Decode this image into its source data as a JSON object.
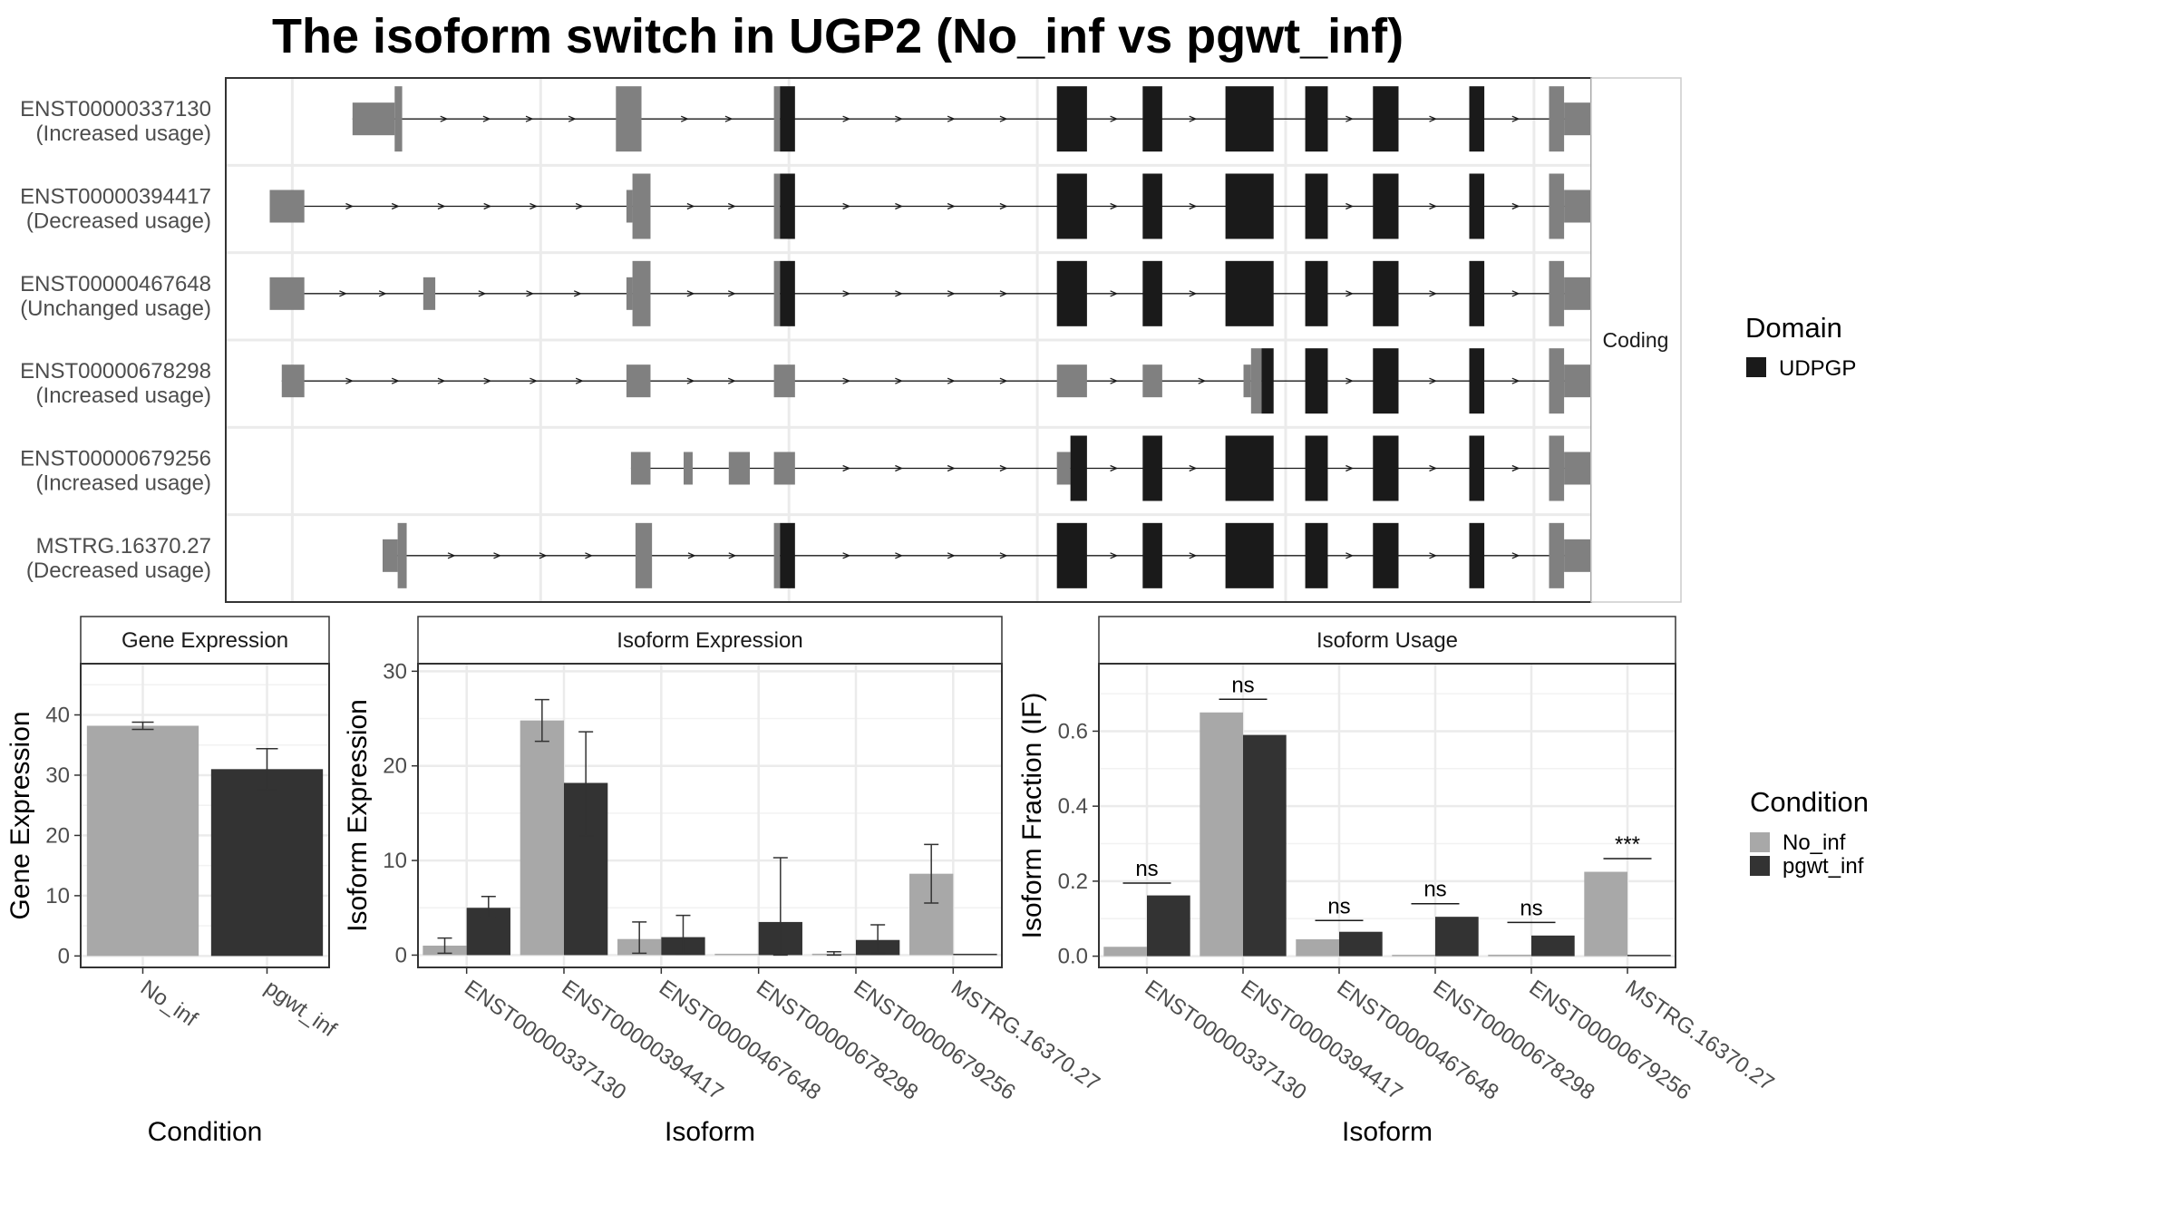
{
  "title": "The isoform switch in UGP2 (No_inf vs pgwt_inf)",
  "colors": {
    "no_inf": "#a8a8a8",
    "pgwt_inf": "#333333",
    "utr": "#808080",
    "domain": "#1a1a1a",
    "panel_border": "#333333",
    "grid": "#ebebeb"
  },
  "structure": {
    "strip_label": "Coding",
    "legend_title": "Domain",
    "legend_items": [
      "UDPGP"
    ],
    "transcripts": [
      {
        "id": "ENST00000337130",
        "usage": "(Increased usage)",
        "start": 80,
        "end": 930,
        "exons": [
          {
            "s": 80,
            "e": 108,
            "k": "utr",
            "h": "short"
          },
          {
            "s": 108,
            "e": 113,
            "k": "utr",
            "h": "tall"
          },
          {
            "s": 255,
            "e": 272,
            "k": "utr",
            "h": "tall"
          },
          {
            "s": 360,
            "e": 364,
            "k": "utr",
            "h": "tall"
          },
          {
            "s": 364,
            "e": 374,
            "k": "dom",
            "h": "tall"
          },
          {
            "s": 548,
            "e": 568,
            "k": "dom",
            "h": "tall"
          },
          {
            "s": 605,
            "e": 618,
            "k": "dom",
            "h": "tall"
          },
          {
            "s": 660,
            "e": 692,
            "k": "dom",
            "h": "tall"
          },
          {
            "s": 713,
            "e": 728,
            "k": "dom",
            "h": "tall"
          },
          {
            "s": 758,
            "e": 775,
            "k": "dom",
            "h": "tall"
          },
          {
            "s": 822,
            "e": 832,
            "k": "dom",
            "h": "tall"
          },
          {
            "s": 875,
            "e": 885,
            "k": "utr",
            "h": "tall"
          },
          {
            "s": 885,
            "e": 905,
            "k": "utr",
            "h": "short"
          }
        ]
      },
      {
        "id": "ENST00000394417",
        "usage": "(Decreased usage)",
        "start": 25,
        "end": 930,
        "exons": [
          {
            "s": 25,
            "e": 48,
            "k": "utr",
            "h": "short"
          },
          {
            "s": 262,
            "e": 266,
            "k": "utr",
            "h": "short"
          },
          {
            "s": 266,
            "e": 278,
            "k": "utr",
            "h": "tall"
          },
          {
            "s": 360,
            "e": 364,
            "k": "utr",
            "h": "tall"
          },
          {
            "s": 364,
            "e": 374,
            "k": "dom",
            "h": "tall"
          },
          {
            "s": 548,
            "e": 568,
            "k": "dom",
            "h": "tall"
          },
          {
            "s": 605,
            "e": 618,
            "k": "dom",
            "h": "tall"
          },
          {
            "s": 660,
            "e": 692,
            "k": "dom",
            "h": "tall"
          },
          {
            "s": 713,
            "e": 728,
            "k": "dom",
            "h": "tall"
          },
          {
            "s": 758,
            "e": 775,
            "k": "dom",
            "h": "tall"
          },
          {
            "s": 822,
            "e": 832,
            "k": "dom",
            "h": "tall"
          },
          {
            "s": 875,
            "e": 885,
            "k": "utr",
            "h": "tall"
          },
          {
            "s": 885,
            "e": 905,
            "k": "utr",
            "h": "short"
          }
        ]
      },
      {
        "id": "ENST00000467648",
        "usage": "(Unchanged usage)",
        "start": 25,
        "end": 930,
        "exons": [
          {
            "s": 25,
            "e": 48,
            "k": "utr",
            "h": "short"
          },
          {
            "s": 127,
            "e": 135,
            "k": "utr",
            "h": "short"
          },
          {
            "s": 262,
            "e": 266,
            "k": "utr",
            "h": "short"
          },
          {
            "s": 266,
            "e": 278,
            "k": "utr",
            "h": "tall"
          },
          {
            "s": 360,
            "e": 364,
            "k": "utr",
            "h": "tall"
          },
          {
            "s": 364,
            "e": 374,
            "k": "dom",
            "h": "tall"
          },
          {
            "s": 548,
            "e": 568,
            "k": "dom",
            "h": "tall"
          },
          {
            "s": 605,
            "e": 618,
            "k": "dom",
            "h": "tall"
          },
          {
            "s": 660,
            "e": 692,
            "k": "dom",
            "h": "tall"
          },
          {
            "s": 713,
            "e": 728,
            "k": "dom",
            "h": "tall"
          },
          {
            "s": 758,
            "e": 775,
            "k": "dom",
            "h": "tall"
          },
          {
            "s": 822,
            "e": 832,
            "k": "dom",
            "h": "tall"
          },
          {
            "s": 875,
            "e": 885,
            "k": "utr",
            "h": "tall"
          },
          {
            "s": 885,
            "e": 905,
            "k": "utr",
            "h": "short"
          }
        ]
      },
      {
        "id": "ENST00000678298",
        "usage": "(Increased usage)",
        "start": 33,
        "end": 930,
        "exons": [
          {
            "s": 33,
            "e": 48,
            "k": "utr",
            "h": "short"
          },
          {
            "s": 262,
            "e": 278,
            "k": "utr",
            "h": "short"
          },
          {
            "s": 360,
            "e": 374,
            "k": "utr",
            "h": "short"
          },
          {
            "s": 548,
            "e": 568,
            "k": "utr",
            "h": "short"
          },
          {
            "s": 605,
            "e": 618,
            "k": "utr",
            "h": "short"
          },
          {
            "s": 672,
            "e": 677,
            "k": "utr",
            "h": "short"
          },
          {
            "s": 677,
            "e": 684,
            "k": "utr",
            "h": "tall"
          },
          {
            "s": 684,
            "e": 692,
            "k": "dom",
            "h": "tall"
          },
          {
            "s": 713,
            "e": 728,
            "k": "dom",
            "h": "tall"
          },
          {
            "s": 758,
            "e": 775,
            "k": "dom",
            "h": "tall"
          },
          {
            "s": 822,
            "e": 832,
            "k": "dom",
            "h": "tall"
          },
          {
            "s": 875,
            "e": 885,
            "k": "utr",
            "h": "tall"
          },
          {
            "s": 885,
            "e": 905,
            "k": "utr",
            "h": "short"
          }
        ]
      },
      {
        "id": "ENST00000679256",
        "usage": "(Increased usage)",
        "start": 265,
        "end": 930,
        "exons": [
          {
            "s": 265,
            "e": 278,
            "k": "utr",
            "h": "short"
          },
          {
            "s": 300,
            "e": 306,
            "k": "utr",
            "h": "short"
          },
          {
            "s": 330,
            "e": 344,
            "k": "utr",
            "h": "short"
          },
          {
            "s": 360,
            "e": 374,
            "k": "utr",
            "h": "short"
          },
          {
            "s": 548,
            "e": 557,
            "k": "utr",
            "h": "short"
          },
          {
            "s": 557,
            "e": 568,
            "k": "dom",
            "h": "tall"
          },
          {
            "s": 605,
            "e": 618,
            "k": "dom",
            "h": "tall"
          },
          {
            "s": 660,
            "e": 692,
            "k": "dom",
            "h": "tall"
          },
          {
            "s": 713,
            "e": 728,
            "k": "dom",
            "h": "tall"
          },
          {
            "s": 758,
            "e": 775,
            "k": "dom",
            "h": "tall"
          },
          {
            "s": 822,
            "e": 832,
            "k": "dom",
            "h": "tall"
          },
          {
            "s": 875,
            "e": 885,
            "k": "utr",
            "h": "tall"
          },
          {
            "s": 885,
            "e": 905,
            "k": "utr",
            "h": "short"
          }
        ]
      },
      {
        "id": "MSTRG.16370.27",
        "usage": "(Decreased usage)",
        "start": 100,
        "end": 930,
        "exons": [
          {
            "s": 100,
            "e": 110,
            "k": "utr",
            "h": "short"
          },
          {
            "s": 110,
            "e": 116,
            "k": "utr",
            "h": "tall"
          },
          {
            "s": 268,
            "e": 279,
            "k": "utr",
            "h": "tall"
          },
          {
            "s": 360,
            "e": 364,
            "k": "utr",
            "h": "tall"
          },
          {
            "s": 364,
            "e": 374,
            "k": "dom",
            "h": "tall"
          },
          {
            "s": 548,
            "e": 568,
            "k": "dom",
            "h": "tall"
          },
          {
            "s": 605,
            "e": 618,
            "k": "dom",
            "h": "tall"
          },
          {
            "s": 660,
            "e": 692,
            "k": "dom",
            "h": "tall"
          },
          {
            "s": 713,
            "e": 728,
            "k": "dom",
            "h": "tall"
          },
          {
            "s": 758,
            "e": 775,
            "k": "dom",
            "h": "tall"
          },
          {
            "s": 822,
            "e": 832,
            "k": "dom",
            "h": "tall"
          },
          {
            "s": 875,
            "e": 885,
            "k": "utr",
            "h": "tall"
          },
          {
            "s": 885,
            "e": 905,
            "k": "utr",
            "h": "short"
          }
        ]
      }
    ]
  },
  "chart_data": [
    {
      "type": "bar",
      "title": "Gene Expression",
      "xlabel": "Condition",
      "ylabel": "Gene Expression",
      "categories": [
        "No_inf",
        "pgwt_inf"
      ],
      "values": [
        38.2,
        31.0
      ],
      "error": [
        [
          37.6,
          38.8
        ],
        [
          27.6,
          34.4
        ]
      ],
      "yticks": [
        0,
        10,
        20,
        30,
        40
      ],
      "ylim": [
        -1.9,
        48.5
      ]
    },
    {
      "type": "bar",
      "title": "Isoform Expression",
      "xlabel": "Isoform",
      "ylabel": "Isoform Expression",
      "categories": [
        "ENST00000337130",
        "ENST00000394417",
        "ENST00000467648",
        "ENST00000678298",
        "ENST00000679256",
        "MSTRG.16370.27"
      ],
      "series": [
        {
          "name": "No_inf",
          "values": [
            1.0,
            24.8,
            1.7,
            0.0,
            0.15,
            8.6
          ],
          "error": [
            [
              0.2,
              1.8
            ],
            [
              22.6,
              27.0
            ],
            [
              0.2,
              3.5
            ],
            null,
            [
              0.0,
              0.35
            ],
            [
              5.5,
              11.7
            ]
          ]
        },
        {
          "name": "pgwt_inf",
          "values": [
            5.0,
            18.2,
            1.9,
            3.5,
            1.6,
            0.0
          ],
          "error": [
            [
              4.0,
              6.2
            ],
            [
              12.6,
              23.6
            ],
            [
              0.1,
              4.2
            ],
            [
              0.0,
              10.3
            ],
            [
              0.2,
              3.2
            ],
            null
          ]
        }
      ],
      "yticks": [
        0,
        10,
        20,
        30
      ],
      "ylim": [
        -1.3,
        30.8
      ]
    },
    {
      "type": "bar",
      "title": "Isoform Usage",
      "xlabel": "Isoform",
      "ylabel": "Isoform Fraction (IF)",
      "categories": [
        "ENST00000337130",
        "ENST00000394417",
        "ENST00000467648",
        "ENST00000678298",
        "ENST00000679256",
        "MSTRG.16370.27"
      ],
      "series": [
        {
          "name": "No_inf",
          "values": [
            0.025,
            0.65,
            0.045,
            0.0,
            0.004,
            0.225
          ]
        },
        {
          "name": "pgwt_inf",
          "values": [
            0.162,
            0.59,
            0.065,
            0.105,
            0.055,
            0.0
          ]
        }
      ],
      "significance": [
        "ns",
        "ns",
        "ns",
        "ns",
        "ns",
        "***"
      ],
      "sig_y": [
        0.195,
        0.685,
        0.095,
        0.14,
        0.09,
        0.26
      ],
      "yticks": [
        0.0,
        0.2,
        0.4,
        0.6
      ],
      "ylim": [
        -0.03,
        0.78
      ]
    }
  ],
  "condition_legend": {
    "title": "Condition",
    "items": [
      "No_inf",
      "pgwt_inf"
    ]
  }
}
